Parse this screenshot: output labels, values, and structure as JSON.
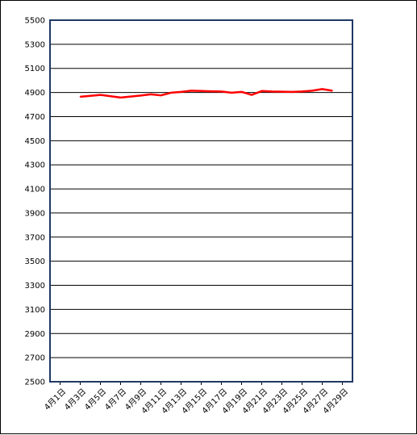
{
  "chart_data": {
    "type": "line",
    "title": "",
    "xlabel": "",
    "ylabel": "",
    "ylim": [
      2500,
      5500
    ],
    "yticks": [
      2500,
      2700,
      2900,
      3100,
      3300,
      3500,
      3700,
      3900,
      4100,
      4300,
      4500,
      4700,
      4900,
      5100,
      5300,
      5500
    ],
    "grid": true,
    "legend": "none",
    "x_tick_labels": [
      "4月1日",
      "4月3日",
      "4月5日",
      "4月7日",
      "4月9日",
      "4月11日",
      "4月13日",
      "4月15日",
      "4月17日",
      "4月19日",
      "4月21日",
      "4月23日",
      "4月25日",
      "4月27日",
      "4月29日"
    ],
    "series": [
      {
        "color": "#ff0000",
        "points": [
          {
            "x": "4月3日",
            "y": 4865
          },
          {
            "x": "4月5日",
            "y": 4880
          },
          {
            "x": "4月7日",
            "y": 4858
          },
          {
            "x": "4月9日",
            "y": 4875
          },
          {
            "x": "4月10日",
            "y": 4885
          },
          {
            "x": "4月11日",
            "y": 4876
          },
          {
            "x": "4月12日",
            "y": 4898
          },
          {
            "x": "4月13日",
            "y": 4905
          },
          {
            "x": "4月14日",
            "y": 4915
          },
          {
            "x": "4月16日",
            "y": 4910
          },
          {
            "x": "4月17日",
            "y": 4908
          },
          {
            "x": "4月18日",
            "y": 4898
          },
          {
            "x": "4月19日",
            "y": 4905
          },
          {
            "x": "4月20日",
            "y": 4880
          },
          {
            "x": "4月21日",
            "y": 4912
          },
          {
            "x": "4月22日",
            "y": 4908
          },
          {
            "x": "4月24日",
            "y": 4905
          },
          {
            "x": "4月25日",
            "y": 4908
          },
          {
            "x": "4月26日",
            "y": 4915
          },
          {
            "x": "4月27日",
            "y": 4928
          },
          {
            "x": "4月28日",
            "y": 4915
          }
        ]
      }
    ]
  }
}
